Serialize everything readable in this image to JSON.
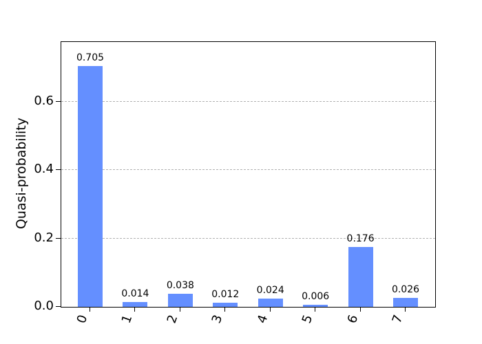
{
  "figure": {
    "background": "#ffffff"
  },
  "chart_data": {
    "type": "bar",
    "title": "",
    "xlabel": "",
    "ylabel": "Quasi-probability",
    "categories": [
      "0",
      "1",
      "2",
      "3",
      "4",
      "5",
      "6",
      "7"
    ],
    "values": [
      0.705,
      0.014,
      0.038,
      0.012,
      0.024,
      0.006,
      0.176,
      0.026
    ],
    "value_labels": [
      "0.705",
      "0.014",
      "0.038",
      "0.012",
      "0.024",
      "0.006",
      "0.176",
      "0.026"
    ],
    "yticks": [
      0.0,
      0.2,
      0.4,
      0.6
    ],
    "ytick_labels": [
      "0.0",
      "0.2",
      "0.4",
      "0.6"
    ],
    "ylim": [
      0,
      0.7755
    ],
    "grid": "horizontal-dashed",
    "legend": "none",
    "bar_color": "#648fff",
    "grid_color": "#b0b0b0",
    "text_color": "#000000"
  }
}
